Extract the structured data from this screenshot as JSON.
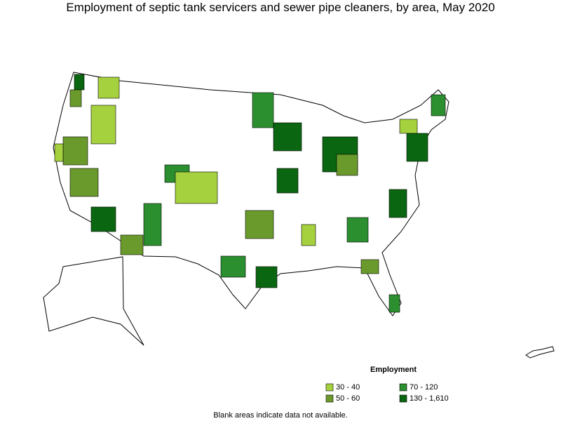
{
  "title": "Employment of septic tank servicers and sewer pipe cleaners, by area, May 2020",
  "legend": {
    "title": "Employment",
    "items": [
      {
        "label": "30 - 40",
        "color": "#a6d13f"
      },
      {
        "label": "50 - 60",
        "color": "#6b9a2c"
      },
      {
        "label": "70 - 120",
        "color": "#2b8f2f"
      },
      {
        "label": "130 - 1,610",
        "color": "#0a6610"
      }
    ]
  },
  "footnote": "Blank areas indicate data not available."
}
